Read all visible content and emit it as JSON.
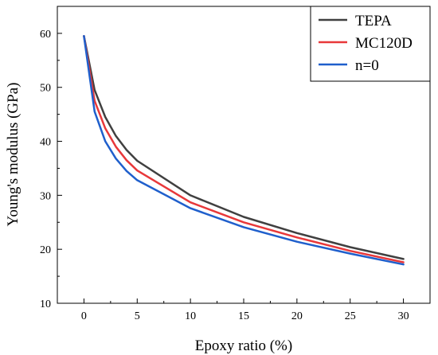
{
  "chart_data": {
    "type": "line",
    "title": "",
    "xlabel": "Epoxy ratio (%)",
    "ylabel": "Young's modulus (GPa)",
    "xlim": [
      -2.5,
      32.5
    ],
    "ylim": [
      10,
      65
    ],
    "x_ticks": [
      0,
      5,
      10,
      15,
      20,
      25,
      30
    ],
    "y_ticks": [
      10,
      20,
      30,
      40,
      50,
      60
    ],
    "x_tick_labels": [
      "0",
      "5",
      "10",
      "15",
      "20",
      "25",
      "30"
    ],
    "y_tick_labels": [
      "10",
      "20",
      "30",
      "40",
      "50",
      "60"
    ],
    "grid": false,
    "legend_position": "top-right",
    "x": [
      0,
      1,
      2,
      3,
      4,
      5,
      10,
      15,
      20,
      25,
      30
    ],
    "series": [
      {
        "name": "TEPA",
        "color": "#404040",
        "values": [
          59.5,
          49.5,
          44.5,
          41.0,
          38.4,
          36.4,
          30.0,
          26.0,
          23.0,
          20.4,
          18.2
        ]
      },
      {
        "name": "MC120D",
        "color": "#e8383a",
        "values": [
          59.5,
          47.5,
          42.4,
          39.0,
          36.5,
          34.6,
          28.7,
          25.0,
          22.2,
          19.7,
          17.6
        ]
      },
      {
        "name": "n=0",
        "color": "#1f5fcc",
        "values": [
          59.5,
          45.5,
          40.0,
          36.8,
          34.5,
          32.8,
          27.6,
          24.1,
          21.4,
          19.2,
          17.2
        ]
      }
    ]
  }
}
